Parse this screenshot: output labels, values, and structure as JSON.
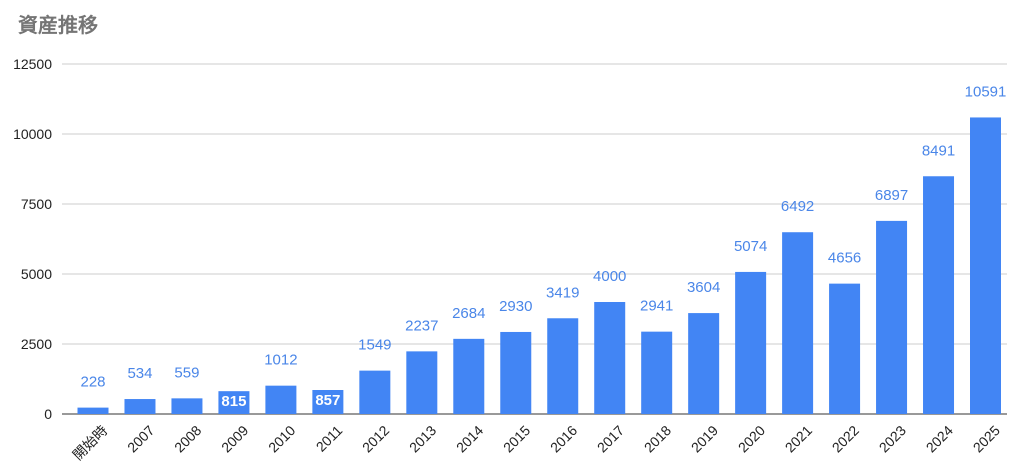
{
  "chart_data": {
    "type": "bar",
    "title": "資産推移",
    "xlabel": "",
    "ylabel": "",
    "categories": [
      "開始時",
      "2007",
      "2008",
      "2009",
      "2010",
      "2011",
      "2012",
      "2013",
      "2014",
      "2015",
      "2016",
      "2017",
      "2018",
      "2019",
      "2020",
      "2021",
      "2022",
      "2023",
      "2024",
      "2025"
    ],
    "series": [
      {
        "values": [
          228,
          534,
          559,
          815,
          1012,
          857,
          1549,
          2237,
          2684,
          2930,
          3419,
          4000,
          2941,
          3604,
          5074,
          6492,
          4656,
          6897,
          8491,
          10591
        ]
      }
    ],
    "data_labels": [
      "228",
      "534",
      "559",
      "815",
      "1012",
      "857",
      "1549",
      "2237",
      "2684",
      "2930",
      "3419",
      "4000",
      "2941",
      "3604",
      "5074",
      "6492",
      "4656",
      "6897",
      "8491",
      "10591"
    ],
    "ylim": [
      0,
      12500
    ],
    "yticks": [
      0,
      2500,
      5000,
      7500,
      10000,
      12500
    ],
    "ytick_labels": [
      "0",
      "2500",
      "5000",
      "7500",
      "10000",
      "12500"
    ],
    "inside_label_categories": [
      "2009",
      "2011"
    ],
    "grid": true,
    "legend": "none",
    "bar_color": "#4285f4",
    "label_color": "#4a86e8"
  }
}
